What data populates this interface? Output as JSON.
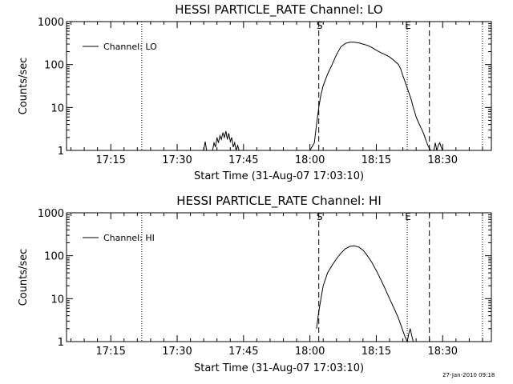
{
  "footer_timestamp": "27-Jan-2010 09:18",
  "chart_data": [
    {
      "type": "line",
      "title": "HESSI PARTICLE_RATE Channel: LO",
      "xlabel": "Start Time (31-Aug-07 17:03:10)",
      "ylabel": "Counts/sec",
      "y_scale": "log",
      "ylim": [
        1,
        1000
      ],
      "xlim": [
        "17:05",
        "18:41"
      ],
      "x_ticks": [
        "17:15",
        "17:30",
        "17:45",
        "18:00",
        "18:15",
        "18:30"
      ],
      "y_ticks": [
        "1",
        "10",
        "100",
        "1000"
      ],
      "grid": false,
      "legend": {
        "position": "top-left",
        "entries": [
          "Channel: LO"
        ]
      },
      "markers": [
        {
          "time": "17:22",
          "style": "dotted",
          "label": ""
        },
        {
          "time": "18:02",
          "style": "dashed",
          "label": "S"
        },
        {
          "time": "18:22",
          "style": "dotted",
          "label": "E"
        },
        {
          "time": "18:27",
          "style": "dashed",
          "label": ""
        },
        {
          "time": "18:39",
          "style": "dotted",
          "label": ""
        }
      ],
      "series": [
        {
          "name": "Channel: LO",
          "x": [
            "17:36:00",
            "17:36:20",
            "17:36:40",
            "17:37:00",
            "17:38:00",
            "17:38:20",
            "17:38:40",
            "17:39:00",
            "17:39:20",
            "17:39:40",
            "17:40:00",
            "17:40:20",
            "17:40:40",
            "17:41:00",
            "17:41:20",
            "17:41:40",
            "17:42:00",
            "17:42:20",
            "17:42:40",
            "17:43:00",
            "17:43:20",
            "17:43:40",
            "17:44:00",
            "17:44:20",
            "18:00:00",
            "18:01:00",
            "18:01:30",
            "18:02:00",
            "18:02:30",
            "18:03:00",
            "18:04:00",
            "18:05:00",
            "18:06:00",
            "18:07:00",
            "18:08:00",
            "18:09:00",
            "18:10:00",
            "18:11:00",
            "18:12:00",
            "18:13:00",
            "18:14:00",
            "18:15:00",
            "18:16:00",
            "18:17:00",
            "18:18:00",
            "18:19:00",
            "18:20:00",
            "18:20:30",
            "18:21:00",
            "18:21:30",
            "18:22:00",
            "18:22:30",
            "18:23:00",
            "18:23:20",
            "18:23:40",
            "18:24:00",
            "18:24:20",
            "18:24:40",
            "18:25:00",
            "18:25:20",
            "18:25:40",
            "18:26:00",
            "18:26:20",
            "18:26:40",
            "18:27:00",
            "18:27:20",
            "18:28:00",
            "18:28:20",
            "18:28:40",
            "18:29:00",
            "18:29:20",
            "18:29:40",
            "18:30:00"
          ],
          "y": [
            1,
            1.6,
            1,
            1,
            1,
            1.5,
            1.2,
            2,
            1.5,
            2.2,
            1.8,
            2.6,
            2,
            2.8,
            1.8,
            2.5,
            1.6,
            2,
            1.2,
            1.5,
            1,
            1.3,
            1,
            1,
            1,
            1.5,
            4,
            10,
            20,
            32,
            60,
            100,
            170,
            260,
            310,
            330,
            330,
            320,
            300,
            280,
            250,
            215,
            190,
            170,
            150,
            125,
            100,
            80,
            55,
            40,
            28,
            20,
            14,
            10,
            8,
            6,
            5,
            4.2,
            3.5,
            3,
            2.5,
            2,
            1.6,
            1.3,
            1.1,
            1,
            1,
            1.5,
            1,
            1.3,
            1.5,
            1.2,
            1
          ]
        }
      ]
    },
    {
      "type": "line",
      "title": "HESSI PARTICLE_RATE Channel: HI",
      "xlabel": "Start Time (31-Aug-07 17:03:10)",
      "ylabel": "Counts/sec",
      "y_scale": "log",
      "ylim": [
        1,
        1000
      ],
      "xlim": [
        "17:05",
        "18:41"
      ],
      "x_ticks": [
        "17:15",
        "17:30",
        "17:45",
        "18:00",
        "18:15",
        "18:30"
      ],
      "y_ticks": [
        "1",
        "10",
        "100",
        "1000"
      ],
      "grid": false,
      "legend": {
        "position": "top-left",
        "entries": [
          "Channel: HI"
        ]
      },
      "markers": [
        {
          "time": "17:22",
          "style": "dotted",
          "label": ""
        },
        {
          "time": "18:02",
          "style": "dashed",
          "label": "S"
        },
        {
          "time": "18:22",
          "style": "dotted",
          "label": "E"
        },
        {
          "time": "18:27",
          "style": "dashed",
          "label": ""
        },
        {
          "time": "18:39",
          "style": "dotted",
          "label": ""
        }
      ],
      "series": [
        {
          "name": "Channel: HI",
          "x": [
            "18:01:30",
            "18:02:00",
            "18:02:30",
            "18:03:00",
            "18:04:00",
            "18:05:00",
            "18:06:00",
            "18:07:00",
            "18:08:00",
            "18:09:00",
            "18:10:00",
            "18:11:00",
            "18:12:00",
            "18:13:00",
            "18:14:00",
            "18:15:00",
            "18:16:00",
            "18:17:00",
            "18:18:00",
            "18:19:00",
            "18:20:00",
            "18:20:30",
            "18:21:00",
            "18:21:30",
            "18:22:00",
            "18:22:20",
            "18:22:40",
            "18:23:00",
            "18:23:20",
            "18:23:40"
          ],
          "y": [
            2,
            5,
            10,
            20,
            40,
            60,
            85,
            115,
            145,
            165,
            170,
            160,
            135,
            100,
            70,
            45,
            28,
            17,
            10,
            6,
            3.5,
            2.5,
            1.8,
            1.3,
            1,
            1.5,
            2,
            1.4,
            1,
            1
          ]
        }
      ]
    }
  ]
}
